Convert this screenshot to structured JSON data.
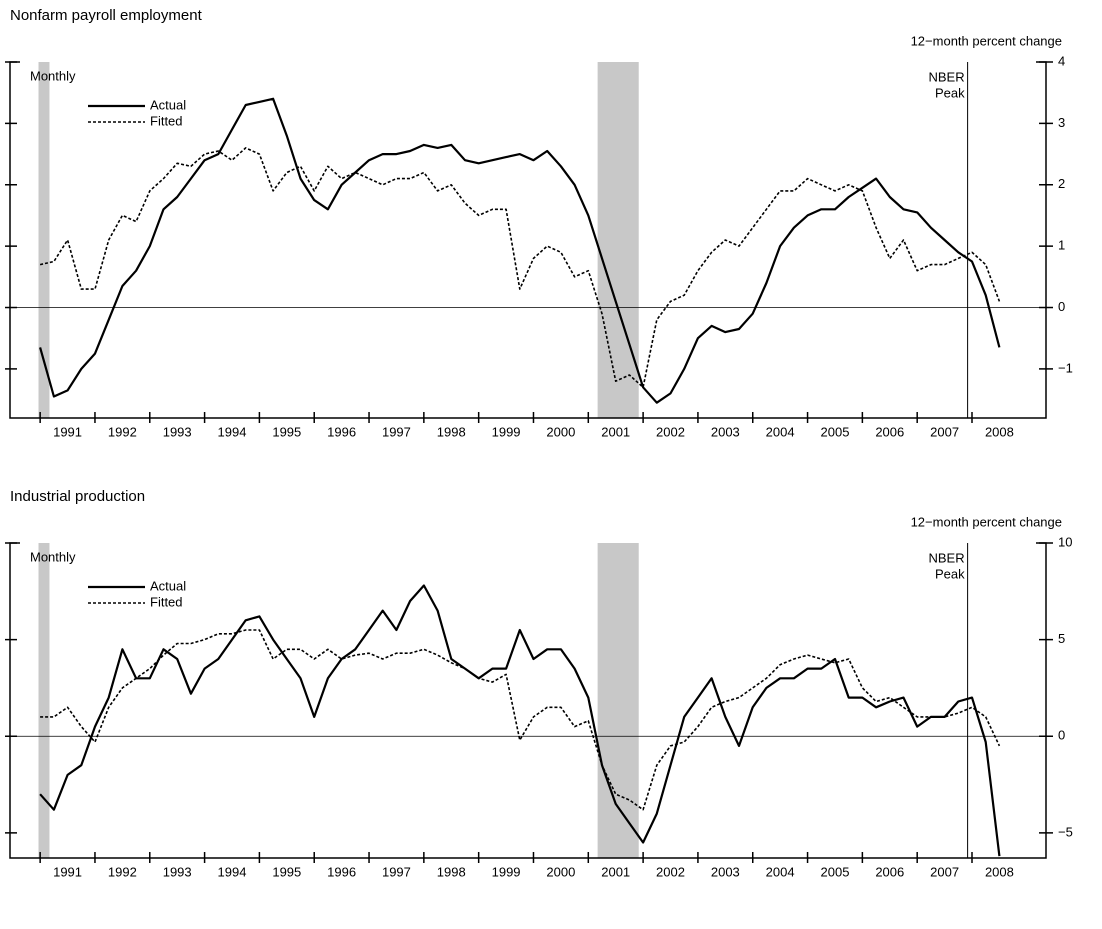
{
  "chart_data": [
    {
      "type": "line",
      "title": "Nonfarm payroll employment",
      "unit_label": "12−month percent change",
      "note": "Monthly",
      "peak_label": [
        "NBER",
        "Peak"
      ],
      "peak_line": 2007.92,
      "shaded": [
        [
          1990.97,
          1991.17
        ],
        [
          2001.17,
          2001.92
        ]
      ],
      "xlim": [
        1990.45,
        2009.35
      ],
      "ylim": [
        -1.8,
        4
      ],
      "yticks": [
        {
          "value": -1,
          "label": "−1"
        },
        0,
        1,
        2,
        3,
        4
      ],
      "xticks": [
        {
          "value": 1991,
          "label": "1991"
        },
        {
          "value": 1992,
          "label": "1992"
        },
        {
          "value": 1993,
          "label": "1993"
        },
        {
          "value": 1994,
          "label": "1994"
        },
        {
          "value": 1995,
          "label": "1995"
        },
        {
          "value": 1996,
          "label": "1996"
        },
        {
          "value": 1997,
          "label": "1997"
        },
        {
          "value": 1998,
          "label": "1998"
        },
        {
          "value": 1999,
          "label": "1999"
        },
        {
          "value": 2000,
          "label": "2000"
        },
        {
          "value": 2001,
          "label": "2001"
        },
        {
          "value": 2002,
          "label": "2002"
        },
        {
          "value": 2003,
          "label": "2003"
        },
        {
          "value": 2004,
          "label": "2004"
        },
        {
          "value": 2005,
          "label": "2005"
        },
        {
          "value": 2006,
          "label": "2006"
        },
        {
          "value": 2007,
          "label": "2007"
        },
        {
          "value": 2008,
          "label": "2008"
        }
      ],
      "zero_line": true,
      "x": [
        1991.0,
        1991.25,
        1991.5,
        1991.75,
        1992.0,
        1992.25,
        1992.5,
        1992.75,
        1993.0,
        1993.25,
        1993.5,
        1993.75,
        1994.0,
        1994.25,
        1994.5,
        1994.75,
        1995.0,
        1995.25,
        1995.5,
        1995.75,
        1996.0,
        1996.25,
        1996.5,
        1996.75,
        1997.0,
        1997.25,
        1997.5,
        1997.75,
        1998.0,
        1998.25,
        1998.5,
        1998.75,
        1999.0,
        1999.25,
        1999.5,
        1999.75,
        2000.0,
        2000.25,
        2000.5,
        2000.75,
        2001.0,
        2001.25,
        2001.5,
        2001.75,
        2002.0,
        2002.25,
        2002.5,
        2002.75,
        2003.0,
        2003.25,
        2003.5,
        2003.75,
        2004.0,
        2004.25,
        2004.5,
        2004.75,
        2005.0,
        2005.25,
        2005.5,
        2005.75,
        2006.0,
        2006.25,
        2006.5,
        2006.75,
        2007.0,
        2007.25,
        2007.5,
        2007.75,
        2008.0,
        2008.25,
        2008.5
      ],
      "series": [
        {
          "name": "Actual",
          "color": "#000000",
          "dash": "solid",
          "values": [
            -0.65,
            -1.45,
            -1.35,
            -1.0,
            -0.75,
            -0.2,
            0.35,
            0.6,
            1.0,
            1.6,
            1.8,
            2.1,
            2.4,
            2.5,
            2.9,
            3.3,
            3.35,
            3.4,
            2.8,
            2.1,
            1.75,
            1.6,
            2.0,
            2.2,
            2.4,
            2.5,
            2.5,
            2.55,
            2.65,
            2.6,
            2.65,
            2.4,
            2.35,
            2.4,
            2.45,
            2.5,
            2.4,
            2.55,
            2.3,
            2.0,
            1.5,
            0.8,
            0.1,
            -0.6,
            -1.3,
            -1.55,
            -1.4,
            -1.0,
            -0.5,
            -0.3,
            -0.4,
            -0.35,
            -0.1,
            0.4,
            1.0,
            1.3,
            1.5,
            1.6,
            1.6,
            1.8,
            1.95,
            2.1,
            1.8,
            1.6,
            1.55,
            1.3,
            1.1,
            0.9,
            0.75,
            0.2,
            -0.65
          ]
        },
        {
          "name": "Fitted",
          "color": "#000000",
          "dash": "dashed",
          "values": [
            0.7,
            0.75,
            1.1,
            0.3,
            0.3,
            1.1,
            1.5,
            1.4,
            1.9,
            2.1,
            2.35,
            2.3,
            2.5,
            2.55,
            2.4,
            2.6,
            2.5,
            1.9,
            2.2,
            2.3,
            1.9,
            2.3,
            2.1,
            2.2,
            2.1,
            2.0,
            2.1,
            2.1,
            2.2,
            1.9,
            2.0,
            1.7,
            1.5,
            1.6,
            1.6,
            0.3,
            0.8,
            1.0,
            0.9,
            0.5,
            0.6,
            -0.1,
            -1.2,
            -1.1,
            -1.3,
            -0.2,
            0.1,
            0.2,
            0.6,
            0.9,
            1.1,
            1.0,
            1.3,
            1.6,
            1.9,
            1.9,
            2.1,
            2.0,
            1.9,
            2.0,
            1.9,
            1.3,
            0.8,
            1.1,
            0.6,
            0.7,
            0.7,
            0.8,
            0.9,
            0.7,
            0.1
          ]
        }
      ]
    },
    {
      "type": "line",
      "title": "Industrial production",
      "unit_label": "12−month percent change",
      "note": "Monthly",
      "peak_label": [
        "NBER",
        "Peak"
      ],
      "peak_line": 2007.92,
      "shaded": [
        [
          1990.97,
          1991.17
        ],
        [
          2001.17,
          2001.92
        ]
      ],
      "xlim": [
        1990.45,
        2009.35
      ],
      "ylim": [
        -6.3,
        10
      ],
      "yticks": [
        {
          "value": -5,
          "label": "−5"
        },
        0,
        5,
        10
      ],
      "xticks": [
        {
          "value": 1991,
          "label": "1991"
        },
        {
          "value": 1992,
          "label": "1992"
        },
        {
          "value": 1993,
          "label": "1993"
        },
        {
          "value": 1994,
          "label": "1994"
        },
        {
          "value": 1995,
          "label": "1995"
        },
        {
          "value": 1996,
          "label": "1996"
        },
        {
          "value": 1997,
          "label": "1997"
        },
        {
          "value": 1998,
          "label": "1998"
        },
        {
          "value": 1999,
          "label": "1999"
        },
        {
          "value": 2000,
          "label": "2000"
        },
        {
          "value": 2001,
          "label": "2001"
        },
        {
          "value": 2002,
          "label": "2002"
        },
        {
          "value": 2003,
          "label": "2003"
        },
        {
          "value": 2004,
          "label": "2004"
        },
        {
          "value": 2005,
          "label": "2005"
        },
        {
          "value": 2006,
          "label": "2006"
        },
        {
          "value": 2007,
          "label": "2007"
        },
        {
          "value": 2008,
          "label": "2008"
        }
      ],
      "zero_line": true,
      "x": [
        1991.0,
        1991.25,
        1991.5,
        1991.75,
        1992.0,
        1992.25,
        1992.5,
        1992.75,
        1993.0,
        1993.25,
        1993.5,
        1993.75,
        1994.0,
        1994.25,
        1994.5,
        1994.75,
        1995.0,
        1995.25,
        1995.5,
        1995.75,
        1996.0,
        1996.25,
        1996.5,
        1996.75,
        1997.0,
        1997.25,
        1997.5,
        1997.75,
        1998.0,
        1998.25,
        1998.5,
        1998.75,
        1999.0,
        1999.25,
        1999.5,
        1999.75,
        2000.0,
        2000.25,
        2000.5,
        2000.75,
        2001.0,
        2001.25,
        2001.5,
        2001.75,
        2002.0,
        2002.25,
        2002.5,
        2002.75,
        2003.0,
        2003.25,
        2003.5,
        2003.75,
        2004.0,
        2004.25,
        2004.5,
        2004.75,
        2005.0,
        2005.25,
        2005.5,
        2005.75,
        2006.0,
        2006.25,
        2006.5,
        2006.75,
        2007.0,
        2007.25,
        2007.5,
        2007.75,
        2008.0,
        2008.25,
        2008.5
      ],
      "series": [
        {
          "name": "Actual",
          "color": "#000000",
          "dash": "solid",
          "values": [
            -3.0,
            -3.8,
            -2.0,
            -1.5,
            0.5,
            2.0,
            4.5,
            3.0,
            3.0,
            4.5,
            4.0,
            2.2,
            3.5,
            4.0,
            5.0,
            6.0,
            6.2,
            5.0,
            4.0,
            3.0,
            1.0,
            3.0,
            4.0,
            4.5,
            5.5,
            6.5,
            5.5,
            7.0,
            7.8,
            6.5,
            4.0,
            3.5,
            3.0,
            3.5,
            3.5,
            5.5,
            4.0,
            4.5,
            4.5,
            3.5,
            2.0,
            -1.5,
            -3.5,
            -4.5,
            -5.5,
            -4.0,
            -1.5,
            1.0,
            2.0,
            3.0,
            1.0,
            -0.5,
            1.5,
            2.5,
            3.0,
            3.0,
            3.5,
            3.5,
            4.0,
            2.0,
            2.0,
            1.5,
            1.8,
            2.0,
            0.5,
            1.0,
            1.0,
            1.8,
            2.0,
            -0.3,
            -6.2
          ]
        },
        {
          "name": "Fitted",
          "color": "#000000",
          "dash": "dashed",
          "values": [
            1.0,
            1.0,
            1.5,
            0.5,
            -0.3,
            1.5,
            2.5,
            3.0,
            3.5,
            4.2,
            4.8,
            4.8,
            5.0,
            5.3,
            5.3,
            5.5,
            5.5,
            4.0,
            4.5,
            4.5,
            4.0,
            4.5,
            4.0,
            4.2,
            4.3,
            4.0,
            4.3,
            4.3,
            4.5,
            4.2,
            3.8,
            3.5,
            3.0,
            2.8,
            3.2,
            -0.2,
            1.0,
            1.5,
            1.5,
            0.5,
            0.8,
            -1.5,
            -3.0,
            -3.3,
            -3.8,
            -1.5,
            -0.5,
            -0.3,
            0.5,
            1.5,
            1.8,
            2.0,
            2.5,
            3.0,
            3.7,
            4.0,
            4.2,
            4.0,
            3.8,
            4.0,
            2.5,
            1.8,
            2.0,
            1.5,
            1.0,
            1.0,
            1.0,
            1.2,
            1.5,
            1.0,
            -0.5
          ]
        }
      ]
    }
  ]
}
